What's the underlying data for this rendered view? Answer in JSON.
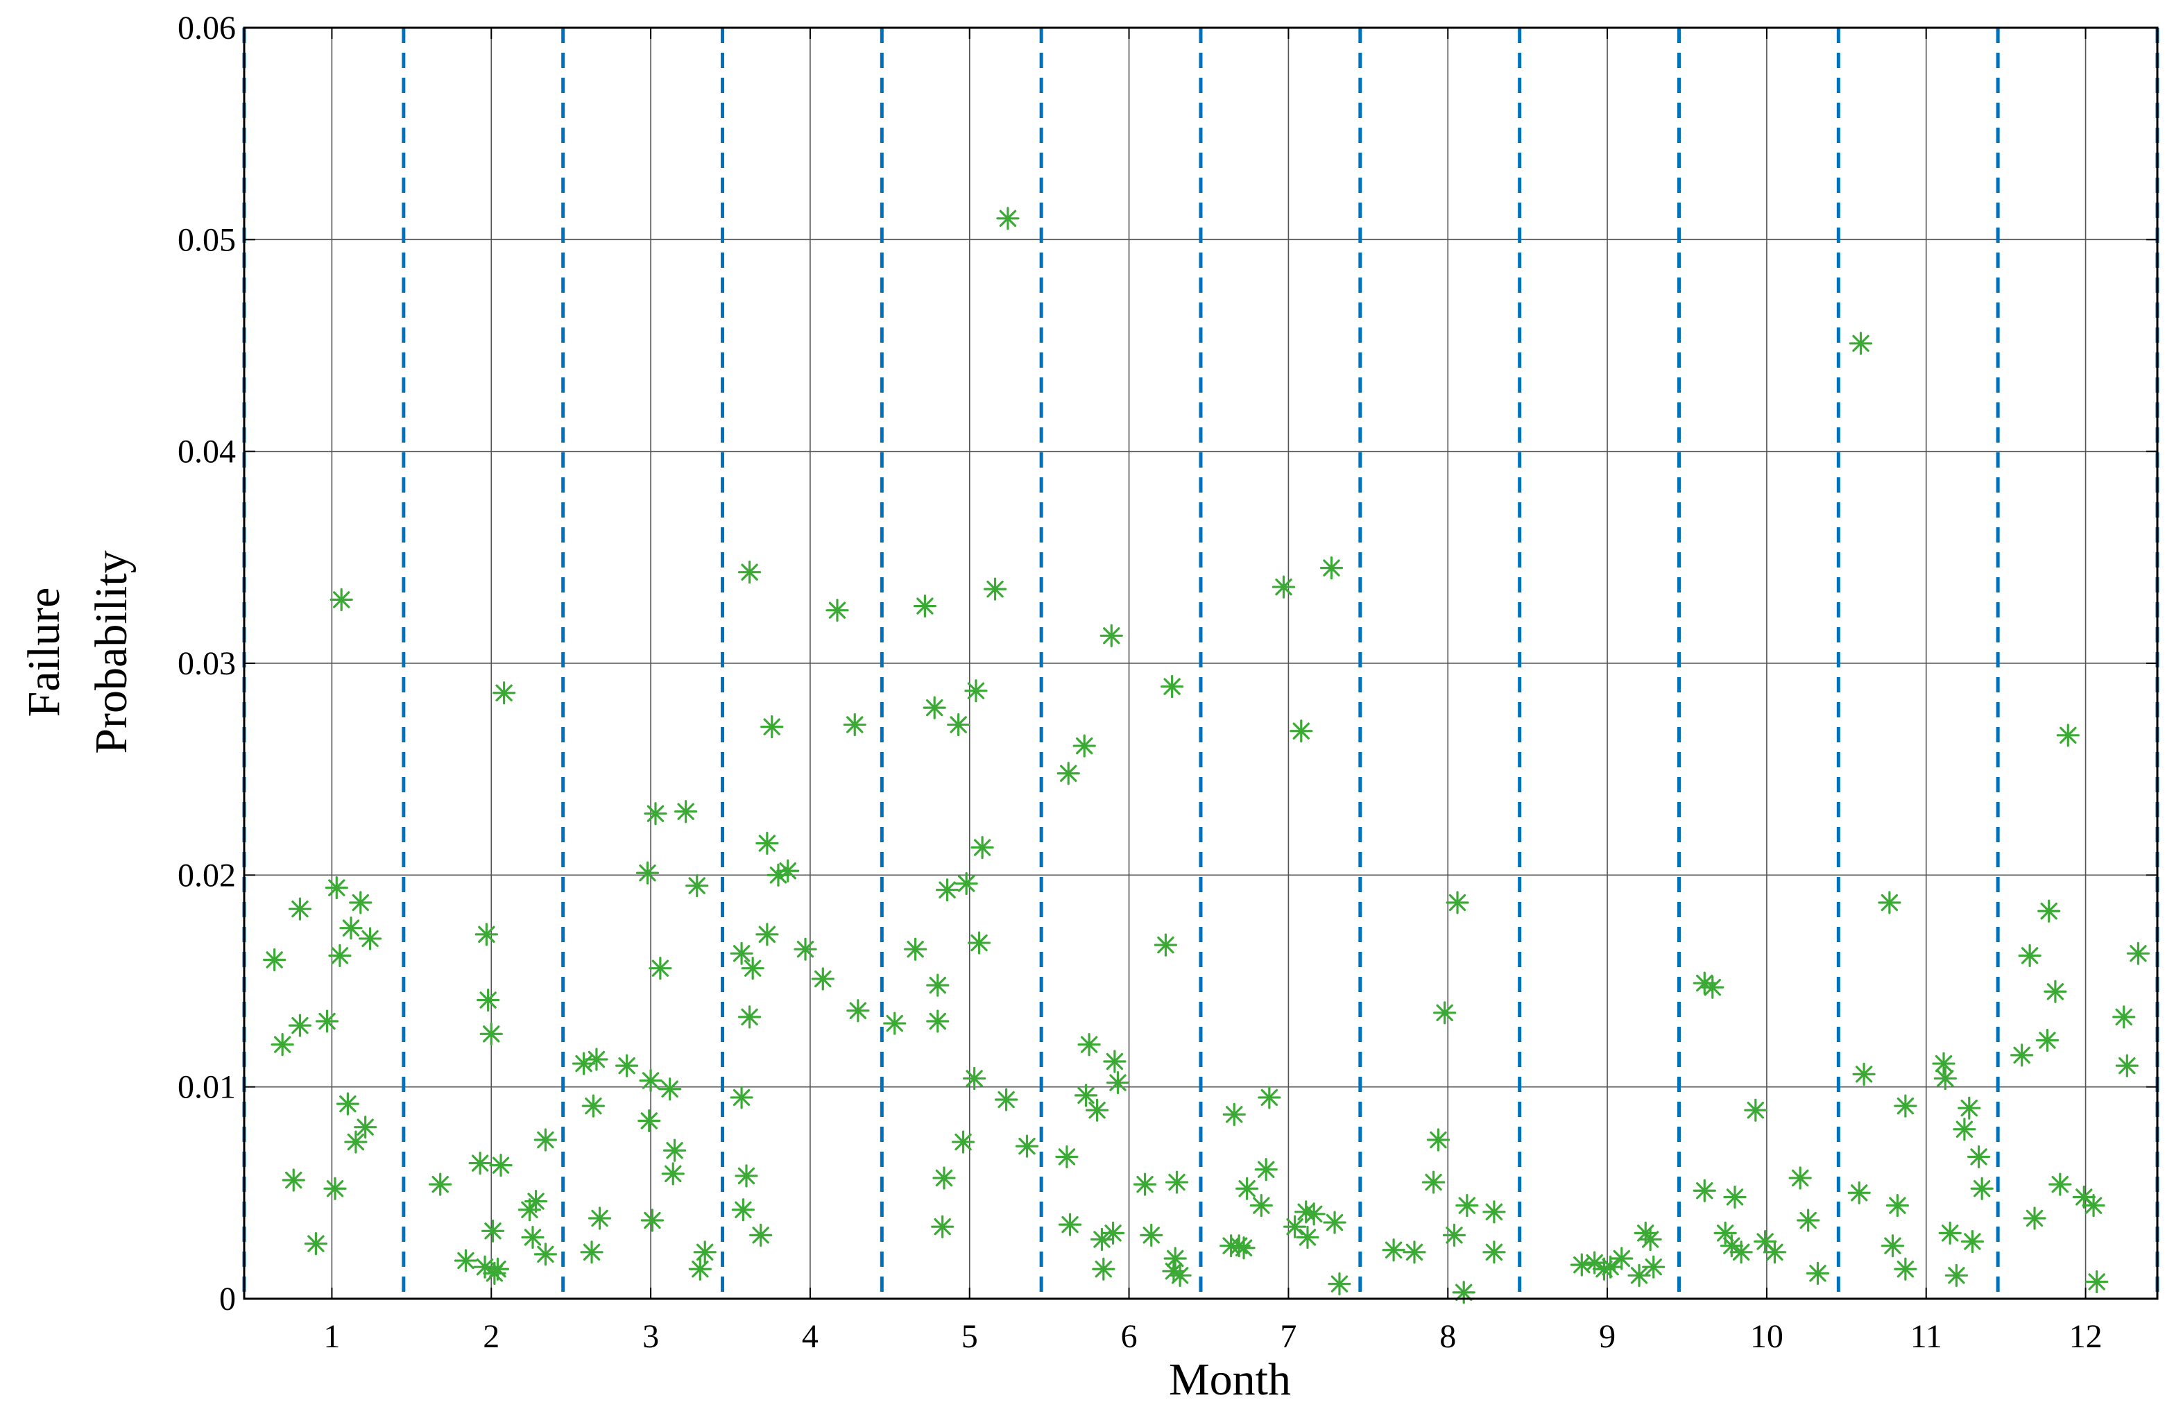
{
  "chart_data": {
    "type": "scatter",
    "title": "",
    "xlabel": "Month",
    "ylabel_lines": [
      "Failure",
      "Probability"
    ],
    "xlim": [
      0.45,
      12.45
    ],
    "ylim": [
      0,
      0.06
    ],
    "x_ticks": [
      1,
      2,
      3,
      4,
      5,
      6,
      7,
      8,
      9,
      10,
      11,
      12
    ],
    "x_tick_labels": [
      "1",
      "2",
      "3",
      "4",
      "5",
      "6",
      "7",
      "8",
      "9",
      "10",
      "11",
      "12"
    ],
    "y_ticks": [
      0,
      0.01,
      0.02,
      0.03,
      0.04,
      0.05,
      0.06
    ],
    "y_tick_labels": [
      "0",
      "0.01",
      "0.02",
      "0.03",
      "0.04",
      "0.05",
      "0.06"
    ],
    "month_separators": [
      0.45,
      1.45,
      2.45,
      3.45,
      4.45,
      5.45,
      6.45,
      7.45,
      8.45,
      9.45,
      10.45,
      11.45,
      12.45
    ],
    "grid": true,
    "colors": {
      "points": "#3aaa35",
      "separators": "#0072bd",
      "grid": "#555555",
      "axes": "#000000"
    },
    "marker": "asterisk",
    "points": [
      [
        0.64,
        0.016
      ],
      [
        0.69,
        0.012
      ],
      [
        0.76,
        0.0056
      ],
      [
        0.8,
        0.0129
      ],
      [
        0.8,
        0.0184
      ],
      [
        0.9,
        0.0026
      ],
      [
        0.97,
        0.0131
      ],
      [
        1.02,
        0.0052
      ],
      [
        1.05,
        0.0162
      ],
      [
        1.03,
        0.0194
      ],
      [
        1.06,
        0.033
      ],
      [
        1.1,
        0.0092
      ],
      [
        1.12,
        0.0175
      ],
      [
        1.15,
        0.0074
      ],
      [
        1.18,
        0.0187
      ],
      [
        1.21,
        0.0081
      ],
      [
        1.24,
        0.017
      ],
      [
        1.68,
        0.0054
      ],
      [
        1.84,
        0.0018
      ],
      [
        1.93,
        0.0064
      ],
      [
        1.96,
        0.0015
      ],
      [
        1.97,
        0.0172
      ],
      [
        1.98,
        0.0141
      ],
      [
        2.0,
        0.0125
      ],
      [
        2.01,
        0.0032
      ],
      [
        2.02,
        0.0012
      ],
      [
        2.04,
        0.0014
      ],
      [
        2.06,
        0.0063
      ],
      [
        2.08,
        0.0286
      ],
      [
        2.24,
        0.0042
      ],
      [
        2.28,
        0.0046
      ],
      [
        2.34,
        0.0075
      ],
      [
        2.34,
        0.0021
      ],
      [
        2.26,
        0.0029
      ],
      [
        2.58,
        0.0111
      ],
      [
        2.63,
        0.0022
      ],
      [
        2.64,
        0.0091
      ],
      [
        2.66,
        0.0113
      ],
      [
        2.68,
        0.0038
      ],
      [
        2.85,
        0.011
      ],
      [
        2.98,
        0.0201
      ],
      [
        3.0,
        0.0103
      ],
      [
        2.99,
        0.0084
      ],
      [
        3.01,
        0.0037
      ],
      [
        3.03,
        0.0229
      ],
      [
        3.06,
        0.0156
      ],
      [
        3.12,
        0.0099
      ],
      [
        3.14,
        0.0059
      ],
      [
        3.15,
        0.007
      ],
      [
        3.22,
        0.023
      ],
      [
        3.29,
        0.0195
      ],
      [
        3.31,
        0.0014
      ],
      [
        3.34,
        0.0022
      ],
      [
        3.57,
        0.0095
      ],
      [
        3.57,
        0.0163
      ],
      [
        3.58,
        0.0042
      ],
      [
        3.6,
        0.0058
      ],
      [
        3.62,
        0.0343
      ],
      [
        3.62,
        0.0133
      ],
      [
        3.64,
        0.0156
      ],
      [
        3.69,
        0.003
      ],
      [
        3.73,
        0.0172
      ],
      [
        3.73,
        0.0215
      ],
      [
        3.76,
        0.027
      ],
      [
        3.8,
        0.02
      ],
      [
        3.86,
        0.0202
      ],
      [
        3.97,
        0.0165
      ],
      [
        4.08,
        0.0151
      ],
      [
        4.17,
        0.0325
      ],
      [
        4.28,
        0.0271
      ],
      [
        4.3,
        0.0136
      ],
      [
        4.53,
        0.013
      ],
      [
        4.66,
        0.0165
      ],
      [
        4.72,
        0.0327
      ],
      [
        4.78,
        0.0279
      ],
      [
        4.8,
        0.0131
      ],
      [
        4.8,
        0.0148
      ],
      [
        4.83,
        0.0034
      ],
      [
        4.84,
        0.0057
      ],
      [
        4.86,
        0.0193
      ],
      [
        4.93,
        0.0271
      ],
      [
        4.96,
        0.0074
      ],
      [
        4.98,
        0.0196
      ],
      [
        5.03,
        0.0104
      ],
      [
        5.04,
        0.0287
      ],
      [
        5.06,
        0.0168
      ],
      [
        5.08,
        0.0213
      ],
      [
        5.16,
        0.0335
      ],
      [
        5.24,
        0.051
      ],
      [
        5.23,
        0.0094
      ],
      [
        5.36,
        0.0072
      ],
      [
        5.62,
        0.0248
      ],
      [
        5.61,
        0.0067
      ],
      [
        5.63,
        0.0035
      ],
      [
        5.72,
        0.0261
      ],
      [
        5.73,
        0.0096
      ],
      [
        5.75,
        0.012
      ],
      [
        5.8,
        0.0089
      ],
      [
        5.83,
        0.0028
      ],
      [
        5.84,
        0.0014
      ],
      [
        5.89,
        0.0313
      ],
      [
        5.9,
        0.0031
      ],
      [
        5.91,
        0.0112
      ],
      [
        5.93,
        0.0102
      ],
      [
        6.1,
        0.0054
      ],
      [
        6.14,
        0.003
      ],
      [
        6.23,
        0.0167
      ],
      [
        6.27,
        0.0289
      ],
      [
        6.29,
        0.0019
      ],
      [
        6.28,
        0.0013
      ],
      [
        6.3,
        0.0055
      ],
      [
        6.32,
        0.0011
      ],
      [
        6.64,
        0.0025
      ],
      [
        6.66,
        0.0087
      ],
      [
        6.69,
        0.0025
      ],
      [
        6.72,
        0.0024
      ],
      [
        6.74,
        0.0052
      ],
      [
        6.83,
        0.0044
      ],
      [
        6.86,
        0.0061
      ],
      [
        6.88,
        0.0095
      ],
      [
        6.97,
        0.0336
      ],
      [
        7.04,
        0.0034
      ],
      [
        7.08,
        0.0268
      ],
      [
        7.11,
        0.0041
      ],
      [
        7.12,
        0.0029
      ],
      [
        7.16,
        0.004
      ],
      [
        7.27,
        0.0345
      ],
      [
        7.29,
        0.0036
      ],
      [
        7.32,
        0.0007
      ],
      [
        7.66,
        0.0023
      ],
      [
        7.79,
        0.0022
      ],
      [
        7.91,
        0.0055
      ],
      [
        7.94,
        0.0075
      ],
      [
        7.98,
        0.0135
      ],
      [
        8.04,
        0.003
      ],
      [
        8.06,
        0.0187
      ],
      [
        8.1,
        0.0003
      ],
      [
        8.12,
        0.0044
      ],
      [
        8.29,
        0.0041
      ],
      [
        8.29,
        0.0022
      ],
      [
        8.84,
        0.0016
      ],
      [
        8.92,
        0.0017
      ],
      [
        8.98,
        0.0014
      ],
      [
        9.02,
        0.0015
      ],
      [
        9.09,
        0.0019
      ],
      [
        9.2,
        0.0011
      ],
      [
        9.24,
        0.0031
      ],
      [
        9.27,
        0.0028
      ],
      [
        9.29,
        0.0015
      ],
      [
        9.61,
        0.0051
      ],
      [
        9.61,
        0.0149
      ],
      [
        9.66,
        0.0147
      ],
      [
        9.74,
        0.0031
      ],
      [
        9.78,
        0.0025
      ],
      [
        9.8,
        0.0048
      ],
      [
        9.84,
        0.0022
      ],
      [
        9.93,
        0.0089
      ],
      [
        9.99,
        0.0027
      ],
      [
        10.05,
        0.0022
      ],
      [
        10.21,
        0.0057
      ],
      [
        10.26,
        0.0037
      ],
      [
        10.32,
        0.0012
      ],
      [
        10.59,
        0.0451
      ],
      [
        10.58,
        0.005
      ],
      [
        10.61,
        0.0106
      ],
      [
        10.77,
        0.0187
      ],
      [
        10.79,
        0.0025
      ],
      [
        10.82,
        0.0044
      ],
      [
        10.87,
        0.0091
      ],
      [
        10.87,
        0.0014
      ],
      [
        11.11,
        0.0111
      ],
      [
        11.12,
        0.0104
      ],
      [
        11.15,
        0.0031
      ],
      [
        11.19,
        0.0011
      ],
      [
        11.24,
        0.008
      ],
      [
        11.27,
        0.009
      ],
      [
        11.29,
        0.0027
      ],
      [
        11.33,
        0.0067
      ],
      [
        11.35,
        0.0052
      ],
      [
        11.6,
        0.0115
      ],
      [
        11.65,
        0.0162
      ],
      [
        11.68,
        0.0038
      ],
      [
        11.76,
        0.0122
      ],
      [
        11.77,
        0.0183
      ],
      [
        11.81,
        0.0145
      ],
      [
        11.84,
        0.0054
      ],
      [
        11.89,
        0.0266
      ],
      [
        11.99,
        0.0048
      ],
      [
        12.05,
        0.0044
      ],
      [
        12.07,
        0.0008
      ],
      [
        12.24,
        0.0133
      ],
      [
        12.26,
        0.011
      ],
      [
        12.33,
        0.0163
      ]
    ]
  }
}
